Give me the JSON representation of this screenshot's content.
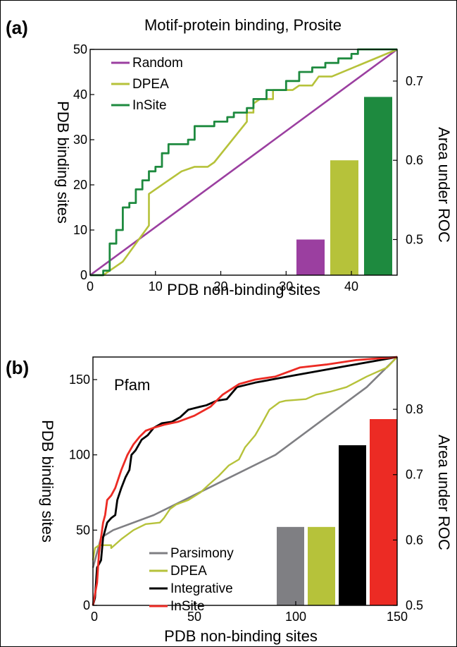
{
  "panels": {
    "a": {
      "label": "(a)",
      "title": "Motif-protein binding, Prosite",
      "xlabel": "PDB non-binding sites",
      "ylabel": "PDB binding sites",
      "y2label": "Area under ROC",
      "xticks": [
        "0",
        "10",
        "20",
        "30",
        "40"
      ],
      "yticks": [
        "0",
        "10",
        "20",
        "30",
        "40",
        "50"
      ],
      "y2ticks": [
        "0.5",
        "0.6",
        "0.7"
      ],
      "legend": [
        "Random",
        "DPEA",
        "InSite"
      ]
    },
    "b": {
      "label": "(b)",
      "title": "Pfam",
      "xlabel": "PDB non-binding sites",
      "ylabel": "PDB binding sites",
      "y2label": "Area under ROC",
      "xticks": [
        "0",
        "50",
        "100",
        "150"
      ],
      "yticks": [
        "0",
        "50",
        "100",
        "150"
      ],
      "y2ticks": [
        "0.5",
        "0.6",
        "0.7",
        "0.8"
      ],
      "legend": [
        "Parsimony",
        "DPEA",
        "Integrative",
        "InSite"
      ]
    }
  },
  "colors": {
    "purple": "#9b3fa0",
    "olive": "#b6c23a",
    "darkgreen": "#1e8a3f",
    "gray": "#7f7f83",
    "black": "#000000",
    "red": "#ec2b24"
  },
  "chart_data": [
    {
      "type": "line",
      "title": "Motif-protein binding, Prosite",
      "xlabel": "PDB non-binding sites",
      "ylabel": "PDB binding sites",
      "xlim": [
        0,
        47
      ],
      "ylim": [
        0,
        50
      ],
      "series": [
        {
          "name": "Random",
          "color": "#9b3fa0",
          "points": [
            [
              0,
              0
            ],
            [
              47,
              50
            ]
          ]
        },
        {
          "name": "DPEA",
          "color": "#b6c23a",
          "points": [
            [
              0,
              0
            ],
            [
              2,
              0
            ],
            [
              3,
              1
            ],
            [
              5,
              3
            ],
            [
              7,
              7
            ],
            [
              9,
              11
            ],
            [
              9,
              18
            ],
            [
              12,
              21
            ],
            [
              14,
              23
            ],
            [
              16,
              24
            ],
            [
              18,
              24
            ],
            [
              19,
              25
            ],
            [
              24,
              34
            ],
            [
              24,
              36
            ],
            [
              25,
              36
            ],
            [
              25,
              38
            ],
            [
              26,
              39
            ],
            [
              28,
              39
            ],
            [
              28,
              41
            ],
            [
              31,
              41
            ],
            [
              32,
              42
            ],
            [
              34,
              42
            ],
            [
              35,
              44
            ],
            [
              37,
              44
            ],
            [
              47,
              50
            ]
          ]
        },
        {
          "name": "InSite",
          "color": "#1e8a3f",
          "points": [
            [
              0,
              0
            ],
            [
              2,
              0
            ],
            [
              2,
              1
            ],
            [
              3,
              1
            ],
            [
              3,
              7
            ],
            [
              4,
              7
            ],
            [
              4,
              10
            ],
            [
              5,
              10
            ],
            [
              5,
              15
            ],
            [
              6,
              15
            ],
            [
              6,
              16
            ],
            [
              7,
              16
            ],
            [
              7,
              19
            ],
            [
              8,
              19
            ],
            [
              8,
              21
            ],
            [
              9,
              21
            ],
            [
              9,
              23
            ],
            [
              10,
              23
            ],
            [
              10,
              24
            ],
            [
              11,
              24
            ],
            [
              11,
              27
            ],
            [
              12,
              27
            ],
            [
              12,
              29
            ],
            [
              15,
              29
            ],
            [
              15,
              30
            ],
            [
              16,
              30
            ],
            [
              16,
              33
            ],
            [
              19,
              33
            ],
            [
              19,
              34
            ],
            [
              21,
              34
            ],
            [
              21,
              35
            ],
            [
              22,
              35
            ],
            [
              22,
              36
            ],
            [
              24,
              36
            ],
            [
              24,
              37
            ],
            [
              25,
              37
            ],
            [
              25,
              39
            ],
            [
              27,
              39
            ],
            [
              27,
              41
            ],
            [
              30,
              41
            ],
            [
              30,
              43
            ],
            [
              32,
              43
            ],
            [
              32,
              45
            ],
            [
              34,
              45
            ],
            [
              34,
              46
            ],
            [
              36,
              46
            ],
            [
              36,
              47
            ],
            [
              38,
              47
            ],
            [
              38,
              48
            ],
            [
              40,
              48
            ],
            [
              40,
              49
            ],
            [
              41,
              49
            ],
            [
              41,
              50
            ],
            [
              47,
              50
            ]
          ]
        }
      ]
    },
    {
      "type": "bar",
      "xlabel": "",
      "ylabel": "Area under ROC",
      "ylim": [
        0.455,
        0.74
      ],
      "categories": [
        "Random",
        "DPEA",
        "InSite"
      ],
      "values": [
        0.5,
        0.6,
        0.68
      ]
    },
    {
      "type": "line",
      "title": "Pfam",
      "xlabel": "PDB non-binding sites",
      "ylabel": "PDB binding sites",
      "xlim": [
        0,
        150
      ],
      "ylim": [
        0,
        165
      ],
      "series": [
        {
          "name": "Parsimony",
          "color": "#7f7f83",
          "points": [
            [
              0,
              25
            ],
            [
              4,
              45
            ],
            [
              10,
              50
            ],
            [
              30,
              60
            ],
            [
              60,
              80
            ],
            [
              90,
              100
            ],
            [
              115,
              125
            ],
            [
              135,
              145
            ],
            [
              150,
              165
            ]
          ]
        },
        {
          "name": "DPEA",
          "color": "#b6c23a",
          "points": [
            [
              0,
              30
            ],
            [
              1,
              38
            ],
            [
              3,
              40
            ],
            [
              9,
              40
            ],
            [
              9,
              38
            ],
            [
              14,
              44
            ],
            [
              20,
              50
            ],
            [
              26,
              54
            ],
            [
              33,
              55
            ],
            [
              35,
              58
            ],
            [
              38,
              64
            ],
            [
              41,
              67
            ],
            [
              47,
              70
            ],
            [
              53,
              75
            ],
            [
              57,
              80
            ],
            [
              62,
              86
            ],
            [
              67,
              93
            ],
            [
              72,
              97
            ],
            [
              75,
              105
            ],
            [
              80,
              113
            ],
            [
              83,
              120
            ],
            [
              87,
              130
            ],
            [
              92,
              135
            ],
            [
              95,
              136
            ],
            [
              105,
              137
            ],
            [
              110,
              140
            ],
            [
              117,
              142
            ],
            [
              125,
              145
            ],
            [
              135,
              152
            ],
            [
              145,
              158
            ],
            [
              150,
              165
            ]
          ]
        },
        {
          "name": "Integrative",
          "color": "#000000",
          "points": [
            [
              0,
              0
            ],
            [
              1,
              5
            ],
            [
              2,
              25
            ],
            [
              4,
              30
            ],
            [
              5,
              45
            ],
            [
              7,
              55
            ],
            [
              9,
              58
            ],
            [
              11,
              60
            ],
            [
              12,
              70
            ],
            [
              14,
              78
            ],
            [
              16,
              85
            ],
            [
              18,
              90
            ],
            [
              19,
              100
            ],
            [
              21,
              103
            ],
            [
              24,
              110
            ],
            [
              27,
              113
            ],
            [
              30,
              118
            ],
            [
              34,
              121
            ],
            [
              39,
              122
            ],
            [
              43,
              125
            ],
            [
              47,
              130
            ],
            [
              53,
              132
            ],
            [
              56,
              133
            ],
            [
              61,
              136
            ],
            [
              66,
              137
            ],
            [
              71,
              145
            ],
            [
              80,
              148
            ],
            [
              100,
              153
            ],
            [
              125,
              159
            ],
            [
              150,
              165
            ]
          ]
        },
        {
          "name": "InSite",
          "color": "#ec2b24",
          "points": [
            [
              0,
              0
            ],
            [
              2,
              15
            ],
            [
              3,
              35
            ],
            [
              5,
              55
            ],
            [
              6,
              60
            ],
            [
              7,
              70
            ],
            [
              9,
              73
            ],
            [
              11,
              78
            ],
            [
              14,
              90
            ],
            [
              17,
              100
            ],
            [
              20,
              107
            ],
            [
              23,
              112
            ],
            [
              26,
              116
            ],
            [
              30,
              118
            ],
            [
              35,
              120
            ],
            [
              42,
              122
            ],
            [
              50,
              126
            ],
            [
              58,
              132
            ],
            [
              64,
              140
            ],
            [
              72,
              147
            ],
            [
              80,
              150
            ],
            [
              90,
              152
            ],
            [
              102,
              158
            ],
            [
              115,
              160
            ],
            [
              130,
              163
            ],
            [
              140,
              164
            ],
            [
              150,
              165
            ]
          ]
        }
      ]
    },
    {
      "type": "bar",
      "xlabel": "",
      "ylabel": "Area under ROC",
      "ylim": [
        0.5,
        0.88
      ],
      "categories": [
        "Parsimony",
        "DPEA",
        "Integrative",
        "InSite"
      ],
      "values": [
        0.62,
        0.62,
        0.745,
        0.785
      ]
    }
  ]
}
